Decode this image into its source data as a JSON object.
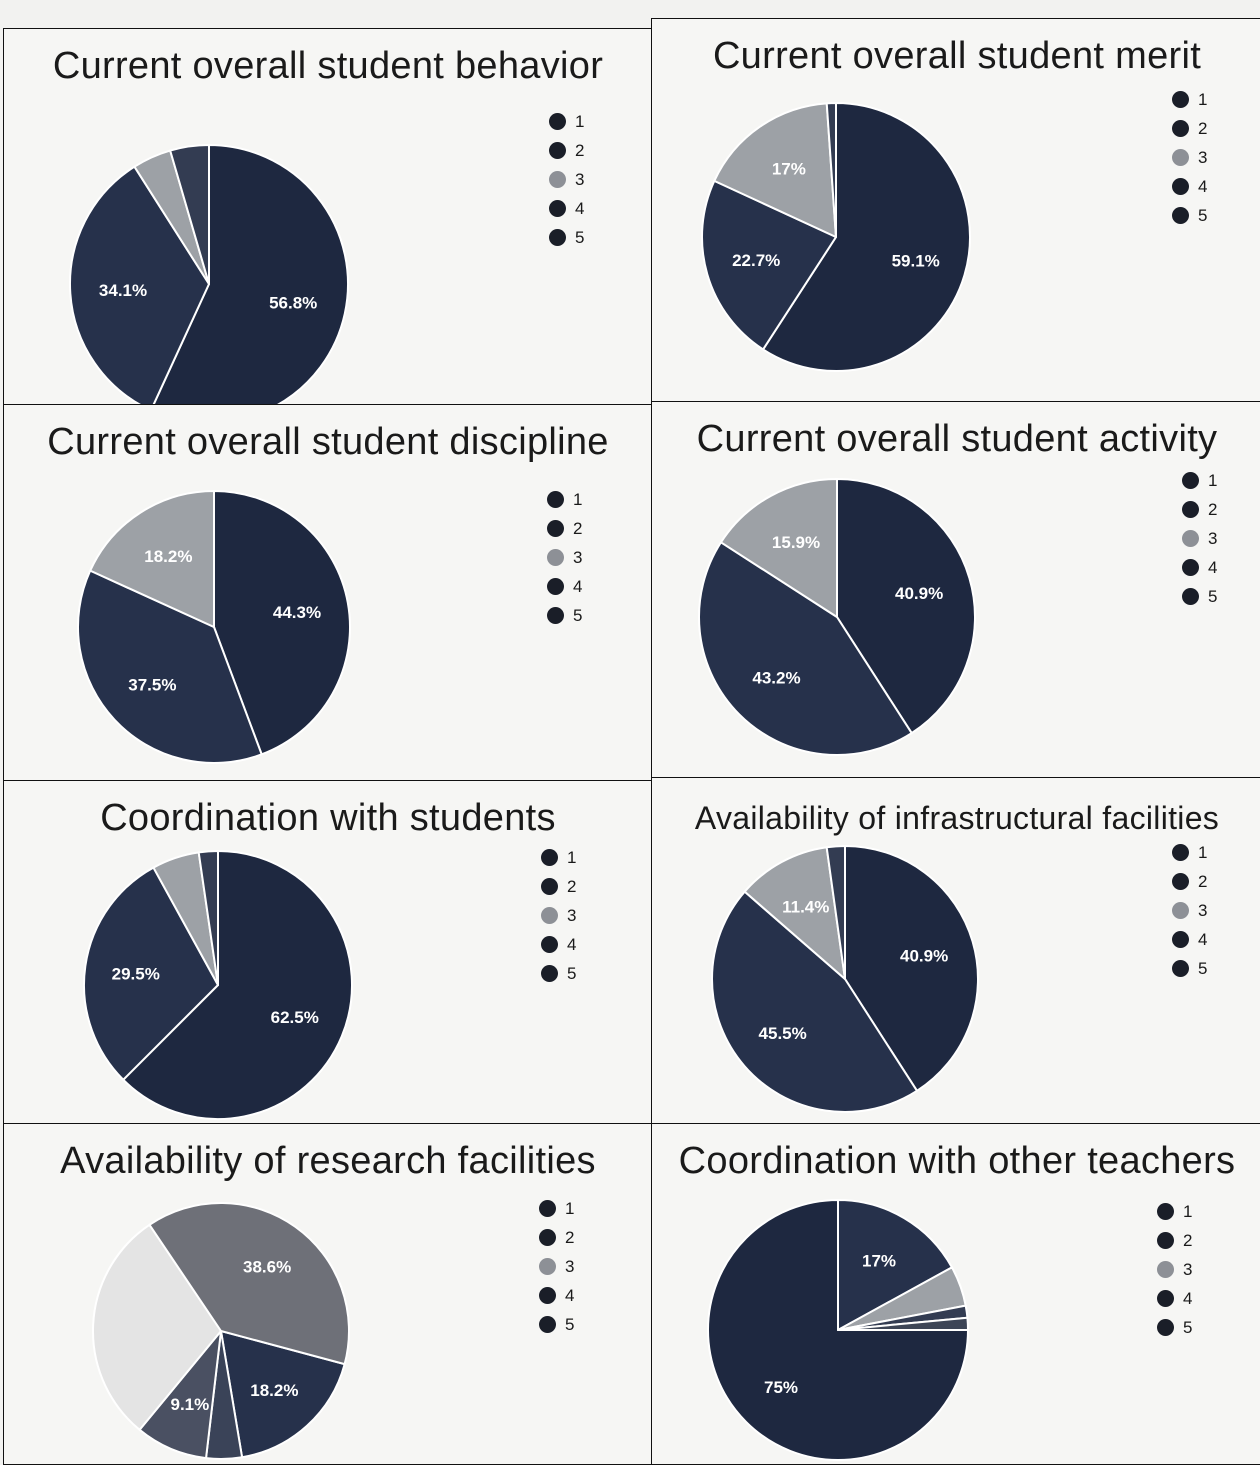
{
  "colors": {
    "c1": "#1e2840",
    "c2": "#26314b",
    "c3": "#9da1a6",
    "c4": "#333c52",
    "c5": "#3d4556",
    "divider": "#ffffff"
  },
  "chart_data": [
    {
      "type": "pie",
      "title": "Current overall student behavior",
      "categories": [
        "1",
        "2",
        "3",
        "4",
        "5"
      ],
      "values": [
        56.8,
        34.1,
        4.5,
        4.5,
        0
      ],
      "labels": [
        "56.8%",
        "34.1%",
        "",
        "",
        ""
      ]
    },
    {
      "type": "pie",
      "title": "Current overall student merit",
      "categories": [
        "1",
        "2",
        "3",
        "4",
        "5"
      ],
      "values": [
        59.1,
        22.7,
        17,
        1.1,
        0
      ],
      "labels": [
        "59.1%",
        "22.7%",
        "17%",
        "",
        ""
      ]
    },
    {
      "type": "pie",
      "title": "Current overall student discipline",
      "categories": [
        "1",
        "2",
        "3",
        "4",
        "5"
      ],
      "values": [
        44.3,
        37.5,
        18.2,
        0,
        0
      ],
      "labels": [
        "44.3%",
        "37.5%",
        "18.2%",
        "",
        ""
      ]
    },
    {
      "type": "pie",
      "title": "Current overall student activity",
      "categories": [
        "1",
        "2",
        "3",
        "4",
        "5"
      ],
      "values": [
        40.9,
        43.2,
        15.9,
        0,
        0
      ],
      "labels": [
        "40.9%",
        "43.2%",
        "15.9%",
        "",
        ""
      ]
    },
    {
      "type": "pie",
      "title": "Coordination with students",
      "categories": [
        "1",
        "2",
        "3",
        "4",
        "5"
      ],
      "values": [
        62.5,
        29.5,
        5.7,
        2.3,
        0
      ],
      "labels": [
        "62.5%",
        "29.5%",
        "",
        "",
        ""
      ]
    },
    {
      "type": "pie",
      "title": "Availability of infrastructural facilities",
      "categories": [
        "1",
        "2",
        "3",
        "4",
        "5"
      ],
      "values": [
        40.9,
        45.5,
        11.4,
        2.2,
        0
      ],
      "labels": [
        "40.9%",
        "45.5%",
        "11.4%",
        "",
        ""
      ]
    },
    {
      "type": "pie",
      "title": "Availability of research facilities",
      "categories": [
        "1",
        "2",
        "3",
        "4",
        "5"
      ],
      "values": [
        18.2,
        4.5,
        9.1,
        29.6,
        38.6
      ],
      "labels": [
        "18.2%",
        "",
        "9.1%",
        "",
        "38.6%"
      ],
      "slice_colors": [
        "#26314b",
        "#3a4358",
        "#4a5062",
        "#e4e4e4",
        "#6e7078"
      ]
    },
    {
      "type": "pie",
      "title": "Coordination with other teachers",
      "categories": [
        "1",
        "2",
        "3",
        "4",
        "5"
      ],
      "values": [
        75,
        17,
        5,
        1.5,
        1.5
      ],
      "labels": [
        "75%",
        "17%",
        "",
        "",
        ""
      ]
    }
  ]
}
